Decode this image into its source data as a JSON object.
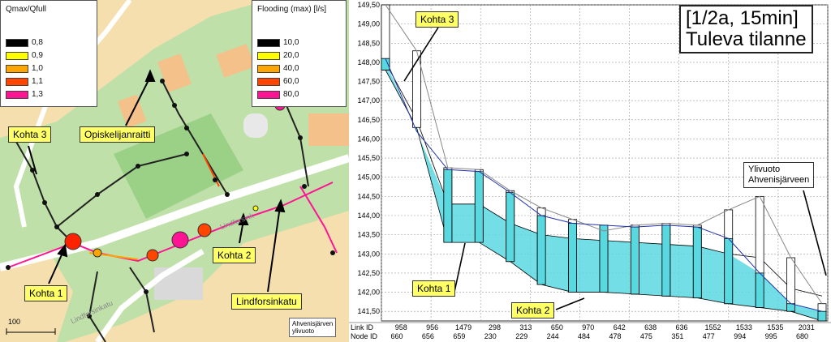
{
  "map": {
    "legend_q": {
      "title": "Qmax/Qfull",
      "items": [
        {
          "value": "0,8",
          "color": "#000000"
        },
        {
          "value": "0,9",
          "color": "#ffff00"
        },
        {
          "value": "1,0",
          "color": "#ffa500"
        },
        {
          "value": "1,1",
          "color": "#ff4500"
        },
        {
          "value": "1,3",
          "color": "#ff1493"
        }
      ]
    },
    "legend_flood": {
      "title": "Flooding (max) [l/s]",
      "items": [
        {
          "value": "10,0",
          "color": "#000000"
        },
        {
          "value": "20,0",
          "color": "#ffff00"
        },
        {
          "value": "40,0",
          "color": "#ffa500"
        },
        {
          "value": "60,0",
          "color": "#ff4500"
        },
        {
          "value": "80,0",
          "color": "#ff1493"
        }
      ]
    },
    "callouts": {
      "kohta3": "Kohta 3",
      "opiskelijanraitti": "Opiskelijanraitti",
      "kohta2": "Kohta 2",
      "kohta1": "Kohta 1",
      "lindforsinkatu": "Lindforsinkatu"
    },
    "street_labels": {
      "a": "Lindforsink",
      "b": "Lindforsinkatu"
    },
    "ylivuoto_note": {
      "line1": "Ahvenisjärven",
      "line2": "ylivuoto"
    },
    "scale_label": "100"
  },
  "profile": {
    "title_line1": "[1/2a, 15min]",
    "title_line2": "Tuleva tilanne",
    "callouts": {
      "kohta3": "Kohta 3",
      "kohta1": "Kohta 1",
      "kohta2": "Kohta 2",
      "ylivuoto_line1": "Ylivuoto",
      "ylivuoto_line2": "Ahvenisjärveen"
    },
    "link_id_label": "Link ID",
    "node_id_label": "Node ID",
    "colors": {
      "water": "#5ad8e0",
      "hgl": "#2233aa",
      "ground": "#888888",
      "grid": "#999999"
    }
  },
  "chart_data": {
    "type": "line",
    "ylim": [
      141.25,
      149.5
    ],
    "yticks": [
      "141,50",
      "142,00",
      "142,50",
      "143,00",
      "143,50",
      "144,00",
      "144,50",
      "145,00",
      "145,50",
      "146,00",
      "146,50",
      "147,00",
      "147,50",
      "148,00",
      "148,50",
      "149,00",
      "149,50"
    ],
    "link_ids": [
      "958",
      "956",
      "1479",
      "298",
      "313",
      "650",
      "970",
      "642",
      "638",
      "636",
      "1552",
      "1533",
      "1535",
      "2031"
    ],
    "node_ids": [
      "660",
      "656",
      "659",
      "230",
      "229",
      "244",
      "484",
      "478",
      "475",
      "351",
      "477",
      "994",
      "995",
      "680"
    ],
    "hgl": [
      [
        0,
        148.1
      ],
      [
        1,
        146.2
      ],
      [
        2,
        145.2
      ],
      [
        3,
        145.15
      ],
      [
        4,
        144.6
      ],
      [
        5,
        144.0
      ],
      [
        6,
        143.8
      ],
      [
        7,
        143.75
      ],
      [
        8,
        143.7
      ],
      [
        9,
        143.75
      ],
      [
        10,
        143.7
      ],
      [
        11,
        143.4
      ],
      [
        12,
        142.5
      ],
      [
        13,
        141.7
      ],
      [
        14,
        141.5
      ]
    ],
    "ground": [
      [
        0,
        149.5
      ],
      [
        1,
        148.3
      ],
      [
        2,
        145.25
      ],
      [
        3,
        145.2
      ],
      [
        4,
        144.65
      ],
      [
        5,
        144.2
      ],
      [
        6,
        143.9
      ],
      [
        7,
        143.6
      ],
      [
        8,
        143.75
      ],
      [
        9,
        143.8
      ],
      [
        10,
        143.75
      ],
      [
        11,
        144.15
      ],
      [
        12,
        144.5
      ],
      [
        13,
        142.9
      ],
      [
        14,
        141.7
      ]
    ],
    "conduit_invert": [
      [
        0,
        147.8
      ],
      [
        1,
        146.3
      ],
      [
        2,
        143.3
      ],
      [
        3,
        143.3
      ],
      [
        4,
        142.8
      ],
      [
        5,
        142.2
      ],
      [
        6,
        142.0
      ],
      [
        7,
        142.0
      ],
      [
        8,
        141.95
      ],
      [
        9,
        141.9
      ],
      [
        10,
        141.85
      ],
      [
        11,
        141.7
      ],
      [
        12,
        141.6
      ],
      [
        13,
        141.5
      ],
      [
        14,
        141.25
      ]
    ],
    "conduit_crown": [
      [
        0,
        148.0
      ],
      [
        1,
        146.5
      ],
      [
        2,
        144.3
      ],
      [
        3,
        144.3
      ],
      [
        4,
        143.8
      ],
      [
        5,
        143.5
      ],
      [
        6,
        143.4
      ],
      [
        7,
        143.35
      ],
      [
        8,
        143.3
      ],
      [
        9,
        143.25
      ],
      [
        10,
        143.2
      ],
      [
        11,
        143.0
      ],
      [
        12,
        142.9
      ],
      [
        13,
        142.1
      ],
      [
        14,
        141.9
      ]
    ]
  }
}
